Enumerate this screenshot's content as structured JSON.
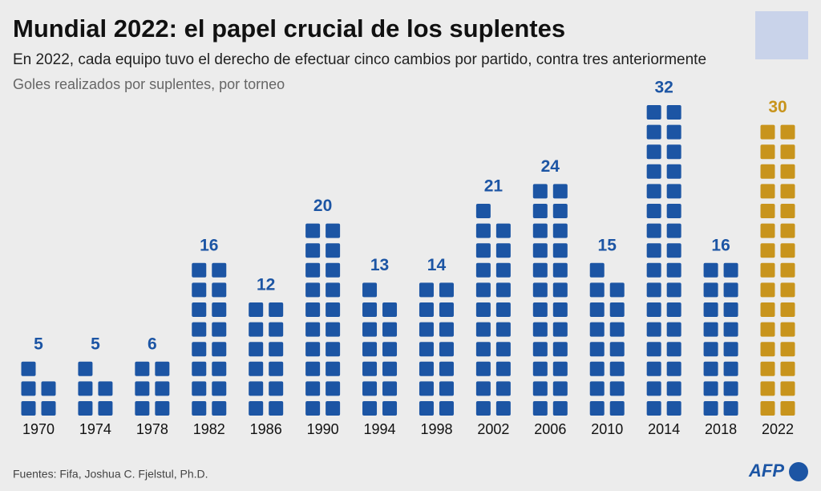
{
  "chart_data": {
    "type": "pictogram",
    "title": "Mundial 2022: el papel crucial de los suplentes",
    "subtitle": "En 2022, cada equipo tuvo el derecho de efectuar cinco cambios por partido, contra tres anteriormente",
    "ylabel": "Goles realizados por suplentes, por torneo",
    "categories": [
      "1970",
      "1974",
      "1978",
      "1982",
      "1986",
      "1990",
      "1994",
      "1998",
      "2002",
      "2006",
      "2010",
      "2014",
      "2018",
      "2022"
    ],
    "values": [
      5,
      5,
      6,
      16,
      12,
      20,
      13,
      14,
      21,
      24,
      15,
      32,
      16,
      30
    ],
    "colors": [
      "#1c55a4",
      "#1c55a4",
      "#1c55a4",
      "#1c55a4",
      "#1c55a4",
      "#1c55a4",
      "#1c55a4",
      "#1c55a4",
      "#1c55a4",
      "#1c55a4",
      "#1c55a4",
      "#1c55a4",
      "#1c55a4",
      "#c8941c"
    ],
    "source": "Fuentes: Fifa, Joshua C. Fjelstul, Ph.D.",
    "logo": "AFP"
  }
}
